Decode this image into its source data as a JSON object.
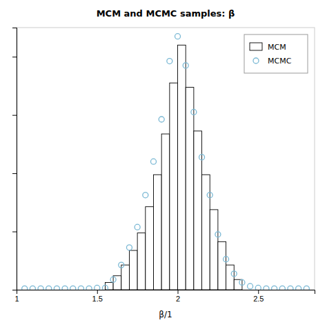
{
  "chart_data": {
    "type": "bar",
    "title": "MCM and MCMC samples:  β",
    "xlabel": "β/1",
    "xlim": [
      1.0,
      2.85
    ],
    "ylim": [
      0,
      0.9
    ],
    "xticks": [
      1,
      1.5,
      2,
      2.5
    ],
    "yticks": [
      0.2,
      0.4,
      0.6,
      0.8
    ],
    "tick_labels": "x",
    "grid": false,
    "legend": "upper right",
    "series": [
      {
        "name": "MCM",
        "type": "bar",
        "color": "white",
        "bins": [
          1.55,
          1.6,
          1.65,
          1.7,
          1.75,
          1.8,
          1.85,
          1.9,
          1.95,
          2.0,
          2.05,
          2.1,
          2.15,
          2.2,
          2.25,
          2.3,
          2.35,
          2.4
        ],
        "values": [
          0.025,
          0.048,
          0.085,
          0.135,
          0.195,
          0.285,
          0.395,
          0.535,
          0.71,
          0.84,
          0.695,
          0.545,
          0.395,
          0.275,
          0.165,
          0.085,
          0.035
        ]
      },
      {
        "name": "MCMC",
        "type": "scatter",
        "color": "#7ab8d4",
        "marker": "circle",
        "x": [
          1.05,
          1.1,
          1.15,
          1.2,
          1.25,
          1.3,
          1.35,
          1.4,
          1.45,
          1.5,
          1.55,
          1.6,
          1.65,
          1.7,
          1.75,
          1.8,
          1.85,
          1.9,
          1.95,
          2.0,
          2.05,
          2.1,
          2.15,
          2.2,
          2.25,
          2.3,
          2.35,
          2.4,
          2.45,
          2.5,
          2.55,
          2.6,
          2.65,
          2.7,
          2.75,
          2.8
        ],
        "values": [
          0.004,
          0.004,
          0.004,
          0.004,
          0.004,
          0.004,
          0.004,
          0.004,
          0.004,
          0.006,
          0.006,
          0.035,
          0.085,
          0.145,
          0.215,
          0.325,
          0.44,
          0.585,
          0.785,
          0.87,
          0.77,
          0.61,
          0.455,
          0.325,
          0.19,
          0.105,
          0.055,
          0.025,
          0.012,
          0.006,
          0.004,
          0.004,
          0.004,
          0.004,
          0.004,
          0.004
        ]
      }
    ]
  }
}
